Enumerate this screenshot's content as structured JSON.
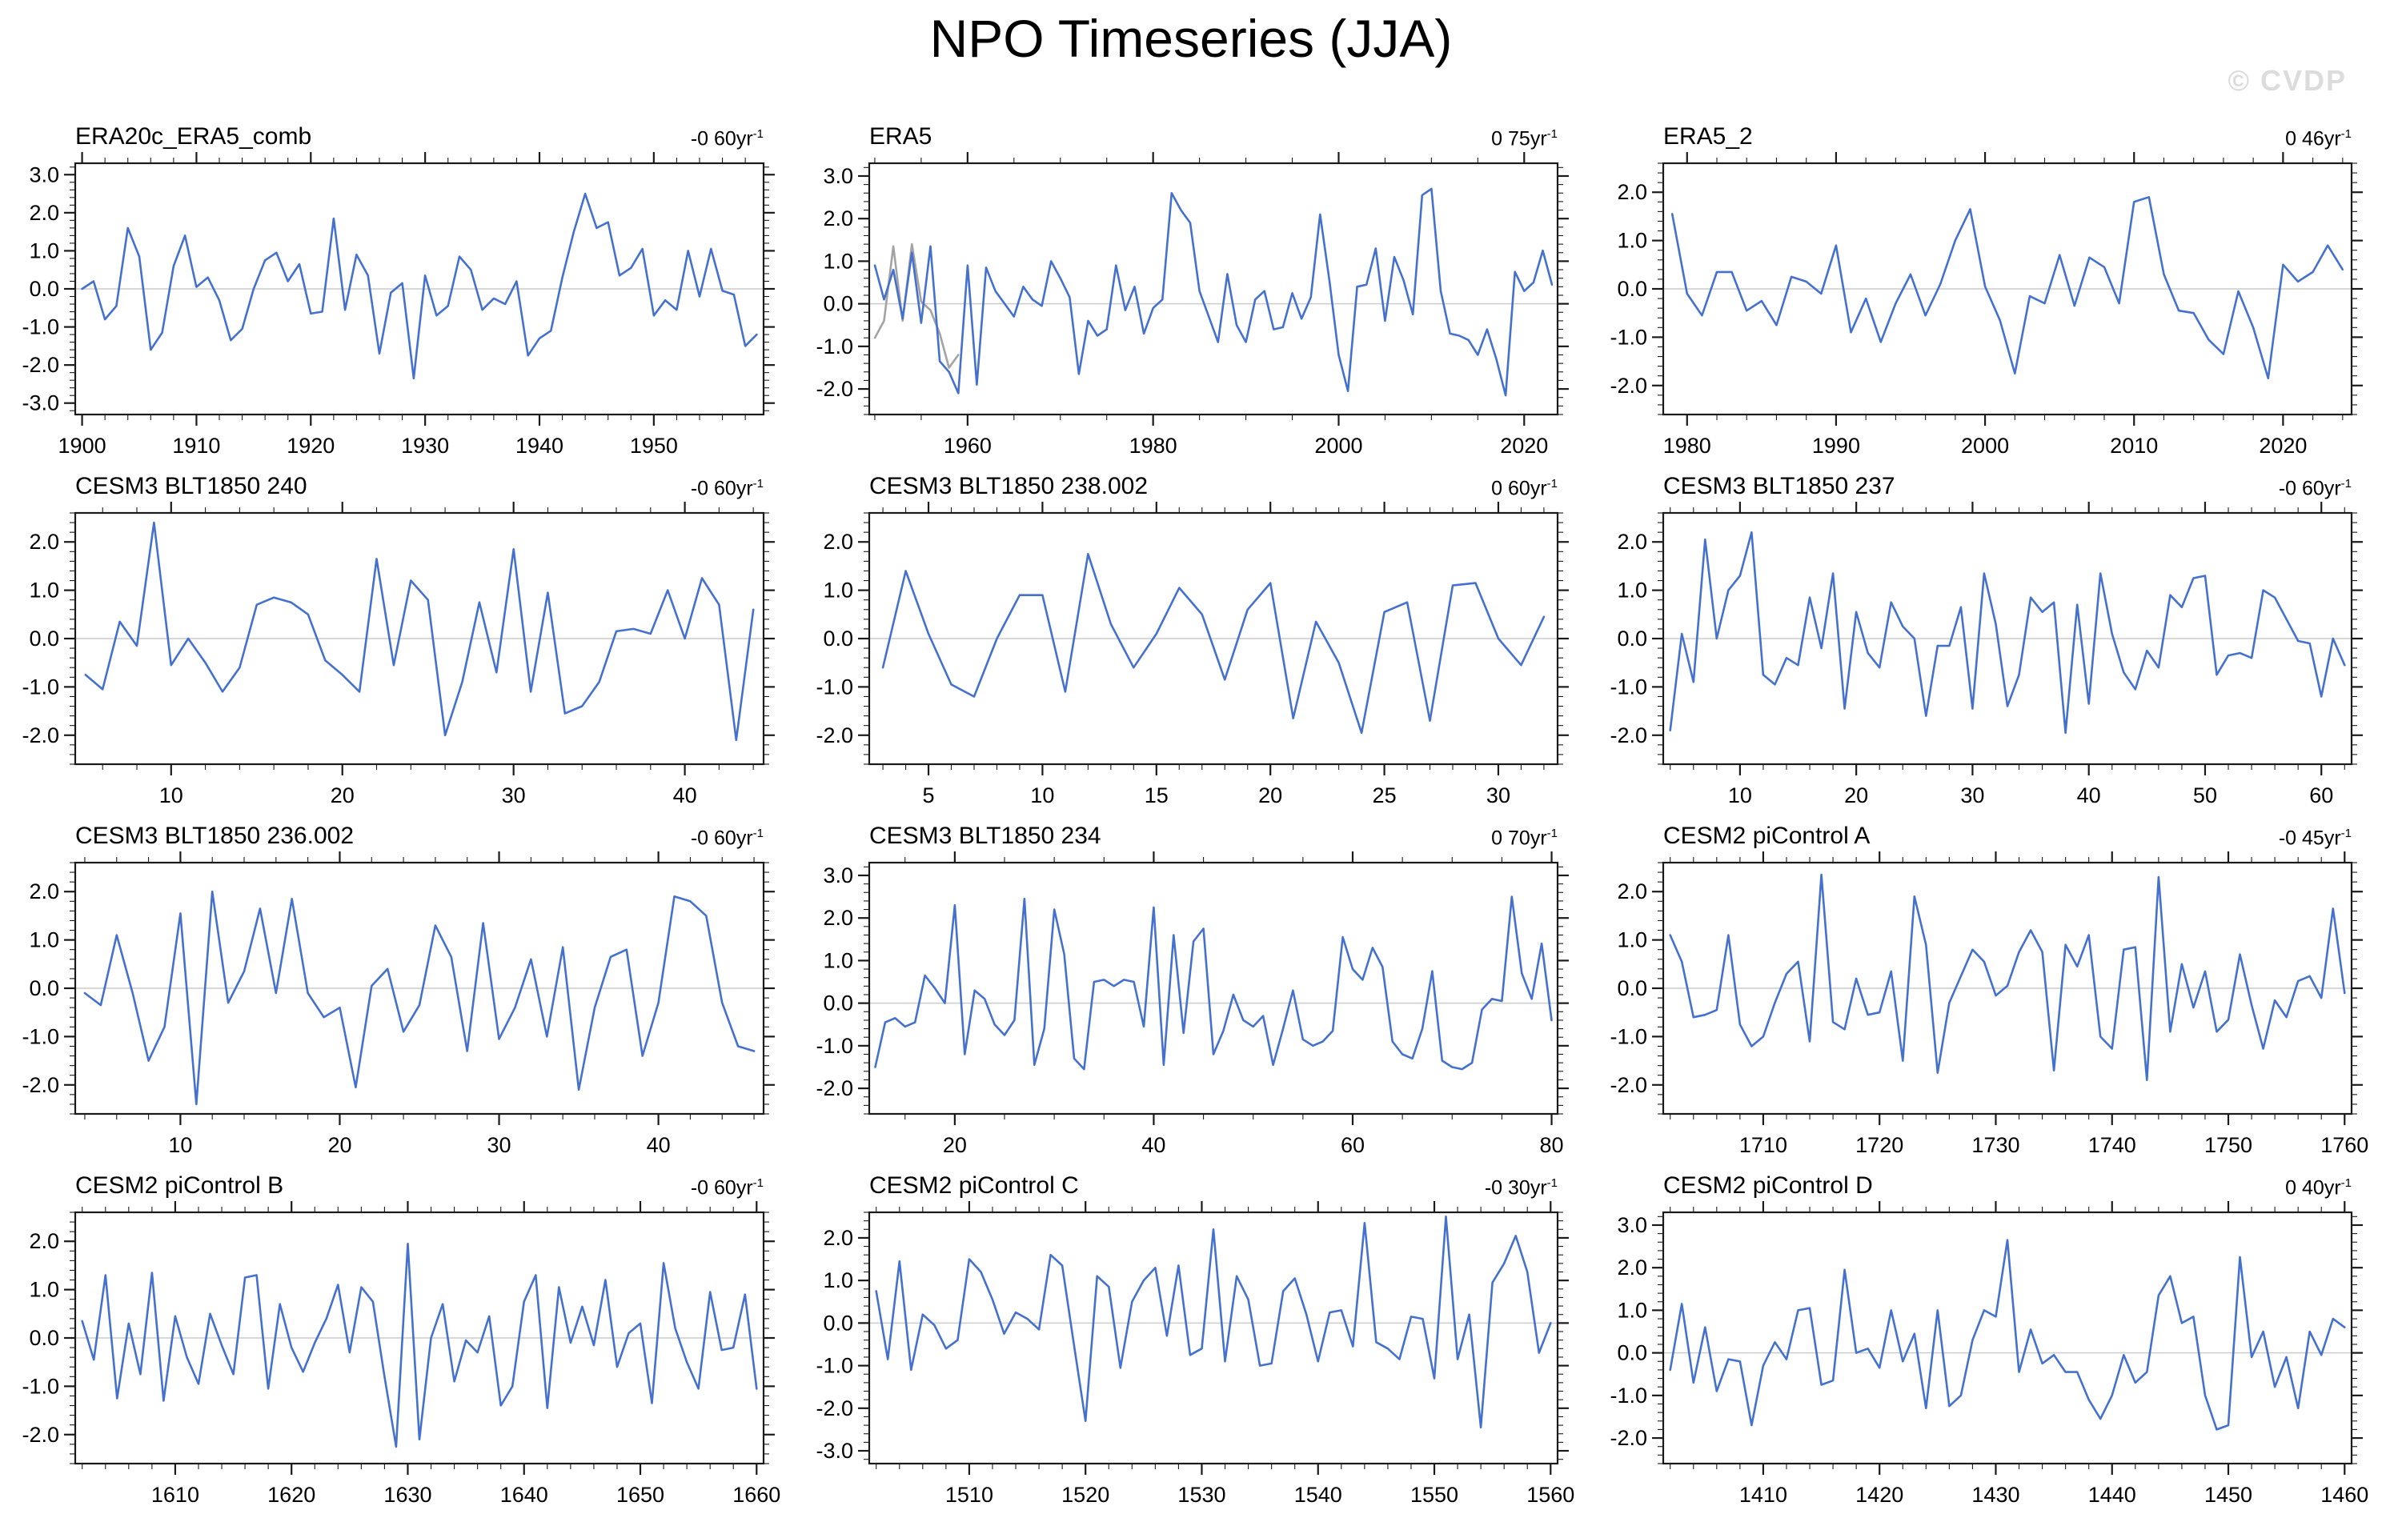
{
  "page_title": "NPO Timeseries (JJA)",
  "watermark": "© CVDP",
  "style": {
    "line_color": "#4470CE",
    "overlap_line_color": "#A3A3A3",
    "zero_line_color": "#cccccc",
    "axis_color": "#1a1a1a"
  },
  "chart_data": [
    {
      "type": "line",
      "title": "ERA20c_ERA5_comb",
      "trend_label": "-0 60yr",
      "trend_sup": "-1",
      "x_start": 1900,
      "x_step": 1,
      "values": [
        0.0,
        0.2,
        -0.8,
        -0.45,
        1.6,
        0.85,
        -1.6,
        -1.15,
        0.6,
        1.4,
        0.05,
        0.3,
        -0.3,
        -1.35,
        -1.05,
        0.0,
        0.75,
        0.95,
        0.2,
        0.65,
        -0.65,
        -0.6,
        1.85,
        -0.55,
        0.9,
        0.35,
        -1.7,
        -0.1,
        0.15,
        -2.35,
        0.35,
        -0.7,
        -0.45,
        0.85,
        0.5,
        -0.55,
        -0.25,
        -0.4,
        0.2,
        -1.75,
        -1.3,
        -1.1,
        0.3,
        1.5,
        2.5,
        1.6,
        1.75,
        0.35,
        0.55,
        1.05,
        -0.7,
        -0.3,
        -0.55,
        1.0,
        -0.2,
        1.05,
        -0.05,
        -0.15,
        -1.5,
        -1.2
      ],
      "xlim": [
        1899.4,
        1959.6
      ],
      "ylim": [
        -3.3,
        3.3
      ],
      "xticks": [
        1900,
        1910,
        1920,
        1930,
        1940,
        1950
      ],
      "yticks": [
        -3,
        -2,
        -1,
        0,
        1,
        2,
        3
      ],
      "x_minor": 2,
      "y_minor": 0.2,
      "zero_line": true
    },
    {
      "type": "line",
      "title": "ERA5",
      "trend_label": "0 75yr",
      "trend_sup": "-1",
      "x_start": 1950,
      "x_step": 1,
      "values": [
        0.9,
        0.1,
        0.8,
        -0.35,
        1.2,
        -0.45,
        1.35,
        -1.35,
        -1.6,
        -2.1,
        0.9,
        -1.9,
        0.85,
        0.3,
        0.0,
        -0.3,
        0.4,
        0.1,
        -0.05,
        1.0,
        0.6,
        0.15,
        -1.65,
        -0.4,
        -0.75,
        -0.6,
        0.9,
        -0.15,
        0.4,
        -0.7,
        -0.1,
        0.1,
        2.6,
        2.2,
        1.9,
        0.3,
        -0.3,
        -0.9,
        0.7,
        -0.5,
        -0.9,
        0.1,
        0.3,
        -0.6,
        -0.55,
        0.25,
        -0.35,
        0.15,
        2.1,
        0.55,
        -1.2,
        -2.05,
        0.4,
        0.45,
        1.3,
        -0.4,
        1.1,
        0.55,
        -0.25,
        2.55,
        2.7,
        0.3,
        -0.7,
        -0.75,
        -0.85,
        -1.2,
        -0.6,
        -1.3,
        -2.15,
        0.75,
        0.3,
        0.5,
        1.25,
        0.45
      ],
      "series2": {
        "color": "#A3A3A3",
        "x_start": 1950,
        "values": [
          -0.8,
          -0.4,
          1.35,
          -0.4,
          1.4,
          0.05,
          -0.15,
          -0.7,
          -1.5,
          -1.2
        ]
      },
      "xlim": [
        1949.4,
        2023.6
      ],
      "ylim": [
        -2.6,
        3.3
      ],
      "xticks": [
        1960,
        1980,
        2000,
        2020
      ],
      "yticks": [
        -2,
        -1,
        0,
        1,
        2,
        3
      ],
      "x_minor": 5,
      "y_minor": 0.2,
      "zero_line": true
    },
    {
      "type": "line",
      "title": "ERA5_2",
      "trend_label": "0 46yr",
      "trend_sup": "-1",
      "x_start": 1979,
      "x_step": 1,
      "values": [
        1.55,
        -0.1,
        -0.55,
        0.35,
        0.35,
        -0.45,
        -0.25,
        -0.75,
        0.25,
        0.15,
        -0.1,
        0.9,
        -0.9,
        -0.2,
        -1.1,
        -0.3,
        0.3,
        -0.55,
        0.1,
        1.0,
        1.65,
        0.05,
        -0.65,
        -1.75,
        -0.15,
        -0.3,
        0.7,
        -0.35,
        0.65,
        0.45,
        -0.3,
        1.8,
        1.9,
        0.3,
        -0.45,
        -0.5,
        -1.05,
        -1.35,
        -0.05,
        -0.8,
        -1.85,
        0.5,
        0.15,
        0.35,
        0.9,
        0.4
      ],
      "xlim": [
        1978.4,
        2024.6
      ],
      "ylim": [
        -2.6,
        2.6
      ],
      "xticks": [
        1980,
        1990,
        2000,
        2010,
        2020
      ],
      "yticks": [
        -2,
        -1,
        0,
        1,
        2
      ],
      "x_minor": 2,
      "y_minor": 0.2,
      "zero_line": true
    },
    {
      "type": "line",
      "title": "CESM3 BLT1850 240",
      "trend_label": "-0 60yr",
      "trend_sup": "-1",
      "x_start": 5,
      "x_step": 1,
      "values": [
        -0.75,
        -1.05,
        0.35,
        -0.15,
        2.4,
        -0.55,
        0.0,
        -0.5,
        -1.1,
        -0.6,
        0.7,
        0.85,
        0.75,
        0.5,
        -0.45,
        -0.75,
        -1.1,
        1.65,
        -0.55,
        1.2,
        0.8,
        -2.0,
        -0.9,
        0.75,
        -0.7,
        1.85,
        -1.1,
        0.95,
        -1.55,
        -1.4,
        -0.9,
        0.15,
        0.2,
        0.1,
        1.0,
        0.0,
        1.25,
        0.7,
        -2.1,
        0.6
      ],
      "xlim": [
        4.4,
        44.6
      ],
      "ylim": [
        -2.6,
        2.6
      ],
      "xticks": [
        10,
        20,
        30,
        40
      ],
      "yticks": [
        -2,
        -1,
        0,
        1,
        2
      ],
      "x_minor": 2,
      "y_minor": 0.2,
      "zero_line": true
    },
    {
      "type": "line",
      "title": "CESM3 BLT1850 238.002",
      "trend_label": "0 60yr",
      "trend_sup": "-1",
      "x_start": 3,
      "x_step": 1,
      "values": [
        -0.6,
        1.4,
        0.1,
        -0.95,
        -1.2,
        0.0,
        0.9,
        0.9,
        -1.1,
        1.75,
        0.3,
        -0.6,
        0.1,
        1.05,
        0.5,
        -0.85,
        0.6,
        1.15,
        -1.65,
        0.35,
        -0.5,
        -1.95,
        0.55,
        0.75,
        -1.7,
        1.1,
        1.15,
        0.0,
        -0.55,
        0.45
      ],
      "xlim": [
        2.4,
        32.6
      ],
      "ylim": [
        -2.6,
        2.6
      ],
      "xticks": [
        5,
        10,
        15,
        20,
        25,
        30
      ],
      "yticks": [
        -2,
        -1,
        0,
        1,
        2
      ],
      "x_minor": 1,
      "y_minor": 0.2,
      "zero_line": true
    },
    {
      "type": "line",
      "title": "CESM3 BLT1850 237",
      "trend_label": "-0 60yr",
      "trend_sup": "-1",
      "x_start": 4,
      "x_step": 1,
      "values": [
        -1.9,
        0.1,
        -0.9,
        2.05,
        0.0,
        1.0,
        1.3,
        2.2,
        -0.75,
        -0.95,
        -0.4,
        -0.55,
        0.85,
        -0.2,
        1.35,
        -1.45,
        0.55,
        -0.3,
        -0.6,
        0.75,
        0.25,
        0.0,
        -1.6,
        -0.15,
        -0.15,
        0.65,
        -1.45,
        1.35,
        0.3,
        -1.4,
        -0.75,
        0.85,
        0.55,
        0.75,
        -1.95,
        0.7,
        -1.35,
        1.35,
        0.1,
        -0.7,
        -1.05,
        -0.25,
        -0.6,
        0.9,
        0.65,
        1.25,
        1.3,
        -0.75,
        -0.35,
        -0.3,
        -0.4,
        1.0,
        0.85,
        0.4,
        -0.05,
        -0.1,
        -1.2,
        0.0,
        -0.55
      ],
      "xlim": [
        3.4,
        62.6
      ],
      "ylim": [
        -2.6,
        2.6
      ],
      "xticks": [
        10,
        20,
        30,
        40,
        50,
        60
      ],
      "yticks": [
        -2,
        -1,
        0,
        1,
        2
      ],
      "x_minor": 2,
      "y_minor": 0.2,
      "zero_line": true
    },
    {
      "type": "line",
      "title": "CESM3 BLT1850 236.002",
      "trend_label": "-0 60yr",
      "trend_sup": "-1",
      "x_start": 4,
      "x_step": 1,
      "values": [
        -0.1,
        -0.35,
        1.1,
        -0.1,
        -1.5,
        -0.8,
        1.55,
        -2.4,
        2.0,
        -0.3,
        0.35,
        1.65,
        -0.1,
        1.85,
        -0.1,
        -0.6,
        -0.4,
        -2.05,
        0.05,
        0.4,
        -0.9,
        -0.35,
        1.3,
        0.65,
        -1.3,
        1.35,
        -1.05,
        -0.4,
        0.6,
        -1.0,
        0.85,
        -2.1,
        -0.4,
        0.65,
        0.8,
        -1.4,
        -0.3,
        1.9,
        1.8,
        1.5,
        -0.3,
        -1.2,
        -1.3
      ],
      "xlim": [
        3.4,
        46.6
      ],
      "ylim": [
        -2.6,
        2.6
      ],
      "xticks": [
        10,
        20,
        30,
        40
      ],
      "yticks": [
        -2,
        -1,
        0,
        1,
        2
      ],
      "x_minor": 2,
      "y_minor": 0.2,
      "zero_line": true
    },
    {
      "type": "line",
      "title": "CESM3 BLT1850 234",
      "trend_label": "0 70yr",
      "trend_sup": "-1",
      "x_start": 12,
      "x_step": 1,
      "values": [
        -1.5,
        -0.45,
        -0.35,
        -0.55,
        -0.45,
        0.65,
        0.35,
        0.0,
        2.3,
        -1.2,
        0.3,
        0.1,
        -0.5,
        -0.75,
        -0.4,
        2.45,
        -1.45,
        -0.6,
        2.2,
        1.15,
        -1.3,
        -1.55,
        0.5,
        0.55,
        0.4,
        0.55,
        0.5,
        -0.55,
        2.25,
        -1.45,
        1.6,
        -0.7,
        1.45,
        1.75,
        -1.2,
        -0.65,
        0.2,
        -0.4,
        -0.55,
        -0.3,
        -1.45,
        -0.6,
        0.3,
        -0.85,
        -1.0,
        -0.9,
        -0.65,
        1.55,
        0.8,
        0.55,
        1.3,
        0.85,
        -0.9,
        -1.2,
        -1.3,
        -0.6,
        0.75,
        -1.35,
        -1.5,
        -1.55,
        -1.4,
        -0.15,
        0.1,
        0.05,
        2.5,
        0.7,
        0.1,
        1.4,
        -0.4
      ],
      "xlim": [
        11.4,
        80.6
      ],
      "ylim": [
        -2.6,
        3.3
      ],
      "xticks": [
        20,
        40,
        60,
        80
      ],
      "yticks": [
        -2,
        -1,
        0,
        1,
        2,
        3
      ],
      "x_minor": 5,
      "y_minor": 0.2,
      "zero_line": true
    },
    {
      "type": "line",
      "title": "CESM2 piControl A",
      "trend_label": "-0 45yr",
      "trend_sup": "-1",
      "x_start": 1702,
      "x_step": 1,
      "values": [
        1.1,
        0.55,
        -0.6,
        -0.55,
        -0.45,
        1.1,
        -0.75,
        -1.2,
        -1.0,
        -0.3,
        0.3,
        0.55,
        -1.1,
        2.35,
        -0.7,
        -0.85,
        0.2,
        -0.55,
        -0.5,
        0.35,
        -1.5,
        1.9,
        0.9,
        -1.75,
        -0.3,
        0.25,
        0.8,
        0.55,
        -0.15,
        0.05,
        0.75,
        1.2,
        0.75,
        -1.7,
        0.9,
        0.45,
        1.1,
        -1.0,
        -1.25,
        0.8,
        0.85,
        -1.9,
        2.3,
        -0.9,
        0.5,
        -0.4,
        0.35,
        -0.9,
        -0.65,
        0.7,
        -0.35,
        -1.25,
        -0.25,
        -0.6,
        0.15,
        0.25,
        -0.2,
        1.65,
        -0.1
      ],
      "xlim": [
        1701.4,
        1760.6
      ],
      "ylim": [
        -2.6,
        2.6
      ],
      "xticks": [
        1710,
        1720,
        1730,
        1740,
        1750,
        1760
      ],
      "yticks": [
        -2,
        -1,
        0,
        1,
        2
      ],
      "x_minor": 2,
      "y_minor": 0.2,
      "zero_line": true
    },
    {
      "type": "line",
      "title": "CESM2 piControl B",
      "trend_label": "-0 60yr",
      "trend_sup": "-1",
      "x_start": 1602,
      "x_step": 1,
      "values": [
        0.35,
        -0.45,
        1.3,
        -1.25,
        0.3,
        -0.75,
        1.35,
        -1.3,
        0.45,
        -0.4,
        -0.95,
        0.5,
        -0.15,
        -0.75,
        1.25,
        1.3,
        -1.05,
        0.7,
        -0.2,
        -0.7,
        -0.1,
        0.4,
        1.1,
        -0.3,
        1.05,
        0.75,
        -0.8,
        -2.25,
        1.95,
        -2.1,
        0.0,
        0.7,
        -0.9,
        -0.05,
        -0.3,
        0.45,
        -1.4,
        -1.0,
        0.75,
        1.3,
        -1.45,
        1.05,
        -0.1,
        0.65,
        -0.15,
        1.2,
        -0.6,
        0.1,
        0.3,
        -1.35,
        1.55,
        0.2,
        -0.5,
        -1.05,
        0.95,
        -0.25,
        -0.2,
        0.9,
        -1.05
      ],
      "xlim": [
        1601.4,
        1660.6
      ],
      "ylim": [
        -2.6,
        2.6
      ],
      "xticks": [
        1610,
        1620,
        1630,
        1640,
        1650,
        1660
      ],
      "yticks": [
        -2,
        -1,
        0,
        1,
        2
      ],
      "x_minor": 2,
      "y_minor": 0.2,
      "zero_line": true
    },
    {
      "type": "line",
      "title": "CESM2 piControl C",
      "trend_label": "-0 30yr",
      "trend_sup": "-1",
      "x_start": 1502,
      "x_step": 1,
      "values": [
        0.75,
        -0.85,
        1.45,
        -1.1,
        0.2,
        -0.05,
        -0.6,
        -0.4,
        1.5,
        1.2,
        0.55,
        -0.25,
        0.25,
        0.1,
        -0.15,
        1.6,
        1.35,
        -0.5,
        -2.3,
        1.1,
        0.85,
        -1.05,
        0.5,
        1.0,
        1.3,
        -0.3,
        1.35,
        -0.75,
        -0.6,
        2.2,
        -0.9,
        1.1,
        0.55,
        -1.0,
        -0.95,
        0.75,
        1.05,
        0.2,
        -0.9,
        0.25,
        0.3,
        -0.55,
        2.35,
        -0.45,
        -0.6,
        -0.85,
        0.15,
        0.1,
        -1.3,
        2.5,
        -0.85,
        0.2,
        -2.45,
        0.95,
        1.4,
        2.05,
        1.2,
        -0.7,
        0.0
      ],
      "xlim": [
        1501.4,
        1560.6
      ],
      "ylim": [
        -3.3,
        2.6
      ],
      "xticks": [
        1510,
        1520,
        1530,
        1540,
        1550,
        1560
      ],
      "yticks": [
        -3,
        -2,
        -1,
        0,
        1,
        2
      ],
      "x_minor": 2,
      "y_minor": 0.2,
      "zero_line": true
    },
    {
      "type": "line",
      "title": "CESM2 piControl D",
      "trend_label": "0 40yr",
      "trend_sup": "-1",
      "x_start": 1402,
      "x_step": 1,
      "values": [
        -0.4,
        1.15,
        -0.7,
        0.6,
        -0.9,
        -0.15,
        -0.2,
        -1.7,
        -0.3,
        0.25,
        -0.15,
        1.0,
        1.05,
        -0.75,
        -0.65,
        1.95,
        0.0,
        0.1,
        -0.35,
        1.0,
        -0.2,
        0.45,
        -1.3,
        1.0,
        -1.25,
        -1.0,
        0.3,
        1.0,
        0.85,
        2.65,
        -0.45,
        0.55,
        -0.25,
        -0.05,
        -0.45,
        -0.45,
        -1.1,
        -1.55,
        -1.0,
        -0.05,
        -0.7,
        -0.45,
        1.35,
        1.8,
        0.7,
        0.85,
        -1.0,
        -1.8,
        -1.7,
        2.25,
        -0.1,
        0.5,
        -0.8,
        -0.1,
        -1.3,
        0.5,
        -0.05,
        0.8,
        0.6
      ],
      "xlim": [
        1401.4,
        1460.6
      ],
      "ylim": [
        -2.6,
        3.3
      ],
      "xticks": [
        1410,
        1420,
        1430,
        1440,
        1450,
        1460
      ],
      "yticks": [
        -2,
        -1,
        0,
        1,
        2,
        3
      ],
      "x_minor": 2,
      "y_minor": 0.2,
      "zero_line": true
    }
  ]
}
